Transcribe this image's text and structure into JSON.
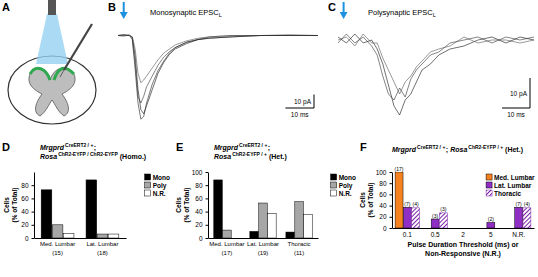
{
  "diagram": {
    "panel": "A"
  },
  "chart_data": [
    {
      "type": "line",
      "panel": "B",
      "title": [
        "Monosynaptic EPSC",
        "L"
      ],
      "tick_labels": false,
      "xlim": [
        0,
        70
      ],
      "ylim": [
        -70,
        10
      ],
      "stimulus": 2,
      "scale_bar": {
        "x": 10,
        "x_label": "10 ms",
        "y": 10,
        "y_label": "10 pA"
      },
      "x": [
        0,
        2,
        4,
        5,
        6,
        7,
        8,
        9,
        10,
        12,
        14,
        16,
        18,
        20,
        24,
        28,
        32,
        40,
        50,
        60,
        70
      ],
      "series": [
        {
          "color": "#111111",
          "values": [
            0,
            0.5,
            0,
            -1,
            -15,
            -40,
            -55,
            -58,
            -52,
            -40,
            -28,
            -20,
            -14,
            -10,
            -6,
            -3,
            -2,
            -1,
            0,
            0,
            0
          ]
        },
        {
          "color": "#333333",
          "values": [
            0,
            -0.5,
            0.5,
            -2,
            -20,
            -45,
            -50,
            -45,
            -38,
            -30,
            -22,
            -16,
            -12,
            -9,
            -5,
            -3,
            -1,
            0,
            0,
            0.5,
            0
          ]
        },
        {
          "color": "#555555",
          "values": [
            0,
            0,
            0,
            -1,
            -10,
            -28,
            -35,
            -33,
            -30,
            -24,
            -18,
            -13,
            -10,
            -7,
            -4,
            -2,
            -1,
            0,
            0,
            0,
            0
          ]
        },
        {
          "color": "#222222",
          "values": [
            0,
            0.5,
            0,
            -3,
            -25,
            -50,
            -62,
            -60,
            -50,
            -36,
            -26,
            -19,
            -13,
            -9,
            -5,
            -3,
            -2,
            -1,
            0,
            0,
            0
          ]
        }
      ]
    },
    {
      "type": "line",
      "panel": "C",
      "title": [
        "Polysynaptic EPSC",
        "L"
      ],
      "tick_labels": false,
      "xlim": [
        0,
        70
      ],
      "ylim": [
        -30,
        6
      ],
      "stimulus": 2,
      "scale_bar": {
        "x": 10,
        "x_label": "10 ms",
        "y": 10,
        "y_label": "10 pA"
      },
      "x": [
        0,
        3,
        6,
        9,
        12,
        14,
        16,
        18,
        20,
        22,
        24,
        26,
        28,
        30,
        33,
        36,
        40,
        45,
        50,
        55,
        60,
        65,
        70
      ],
      "series": [
        {
          "color": "#111111",
          "values": [
            1,
            -1,
            2,
            -1,
            0,
            -3,
            -8,
            -15,
            -22,
            -25,
            -20,
            -18,
            -14,
            -10,
            -8,
            -5,
            -3,
            -2,
            0,
            1,
            -1,
            1,
            0
          ]
        },
        {
          "color": "#333333",
          "values": [
            -1,
            2,
            -1,
            1,
            -2,
            -5,
            -12,
            -18,
            -20,
            -16,
            -19,
            -13,
            -10,
            -8,
            -5,
            -4,
            -1,
            0,
            1,
            -1,
            1,
            0,
            1
          ]
        },
        {
          "color": "#555555",
          "values": [
            0,
            1,
            -2,
            2,
            -1,
            -1,
            -6,
            -10,
            -14,
            -18,
            -14,
            -12,
            -9,
            -7,
            -4,
            -3,
            -2,
            1,
            -1,
            0,
            0,
            -1,
            0
          ]
        }
      ]
    },
    {
      "type": "bar",
      "panel": "D",
      "title": [
        [
          "Mrgprd",
          "CreERT2 / +",
          ";"
        ],
        [
          "Rosa",
          "ChR2-EYFP / ChR2-EYFP",
          "(Homo.)"
        ]
      ],
      "ylabel": [
        "Cells",
        "(% of Total)"
      ],
      "categories": [
        "Med. Lumbar",
        "Lat. Lumbar"
      ],
      "n_labels": [
        "(15)",
        "(18)"
      ],
      "ylim": [
        0,
        100
      ],
      "yticks": [
        0,
        20,
        40,
        60,
        80
      ],
      "legend": "upper right",
      "series": [
        {
          "name": "Mono",
          "color": "#000000",
          "values": [
            73,
            88
          ]
        },
        {
          "name": "Poly",
          "color": "#a6a6a6",
          "values": [
            20,
            6
          ]
        },
        {
          "name": "N.R.",
          "color": "#ffffff",
          "values": [
            7,
            6
          ]
        }
      ]
    },
    {
      "type": "bar",
      "panel": "E",
      "title": [
        [
          "Mrgprd",
          "CreERT2 / +",
          ";"
        ],
        [
          "Rosa",
          "ChR2-EYFP / +",
          "(Het.)"
        ]
      ],
      "ylabel": [
        "Cells",
        "(% of Total)"
      ],
      "categories": [
        "Med. Lumbar",
        "Lat. Lumbar",
        "Thoracic"
      ],
      "n_labels": [
        "(17)",
        "(19)",
        "(11)"
      ],
      "ylim": [
        0,
        100
      ],
      "yticks": [
        0,
        20,
        40,
        60,
        80,
        100
      ],
      "legend": "upper right",
      "series": [
        {
          "name": "Mono",
          "color": "#000000",
          "values": [
            88,
            10,
            9
          ]
        },
        {
          "name": "Poly",
          "color": "#a6a6a6",
          "values": [
            12,
            53,
            55
          ]
        },
        {
          "name": "N.R.",
          "color": "#ffffff",
          "values": [
            0,
            37,
            36
          ]
        }
      ]
    },
    {
      "type": "bar",
      "panel": "F",
      "title": [
        [
          "Mrgprd",
          "CreERT2 / +",
          ";",
          "Rosa",
          "ChR2-EYFP / +",
          "(Het.)"
        ]
      ],
      "ylabel": [
        "Cells",
        "(% of Total)"
      ],
      "xlabel": [
        "Pulse Duration Threshold (ms) or",
        "Non-Responsive (N.R.)"
      ],
      "categories": [
        "0.1",
        "0.5",
        "2",
        "5",
        "N.R."
      ],
      "ylim": [
        0,
        100
      ],
      "yticks": [
        0,
        20,
        40,
        60,
        80,
        100
      ],
      "legend": "upper right",
      "series": [
        {
          "name": "Med. Lumbar",
          "color": "#f5821f",
          "values": [
            100,
            0,
            0,
            0,
            0
          ],
          "count_labels": [
            "(17)",
            null,
            null,
            null,
            null
          ]
        },
        {
          "name": "Lat. Lumbar",
          "color": "#8e2ec4",
          "values": [
            37,
            16,
            0,
            10,
            37
          ],
          "count_labels": [
            "(7)",
            "(3)",
            null,
            "(2)",
            "(7)"
          ]
        },
        {
          "name": "Thoracic",
          "color": "#7a1fa8",
          "marker": "hatch",
          "values": [
            36,
            27,
            0,
            0,
            36
          ],
          "count_labels": [
            "(4)",
            "(3)",
            null,
            null,
            "(4)"
          ]
        }
      ]
    }
  ]
}
